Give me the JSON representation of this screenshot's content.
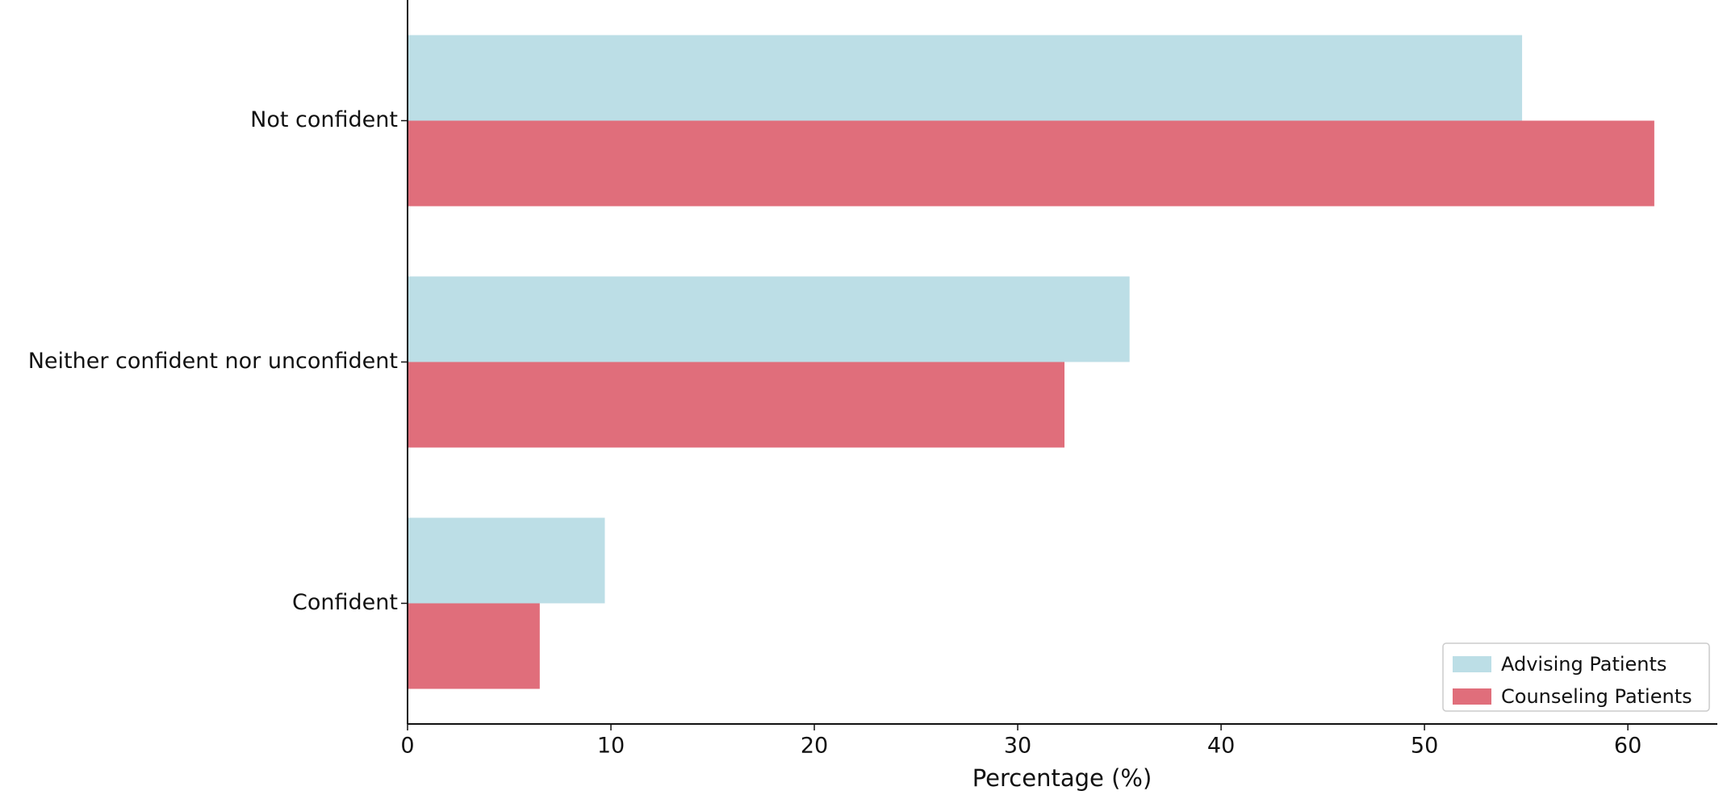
{
  "chart_data": {
    "type": "barh",
    "xlabel": "Percentage (%)",
    "categories": [
      "Not confident",
      "Neither confident nor unconfident",
      "Confident"
    ],
    "series": [
      {
        "name": "Advising Patients",
        "color": "#bcdee6",
        "values": [
          54.8,
          35.5,
          9.7
        ]
      },
      {
        "name": "Counseling Patients",
        "color": "#e06e7b",
        "values": [
          61.3,
          32.3,
          6.5
        ]
      }
    ],
    "xlim": [
      0,
      64.4
    ],
    "xticks": [
      0,
      10,
      20,
      30,
      40,
      50,
      60
    ],
    "grid": false,
    "legend": "lower right"
  }
}
